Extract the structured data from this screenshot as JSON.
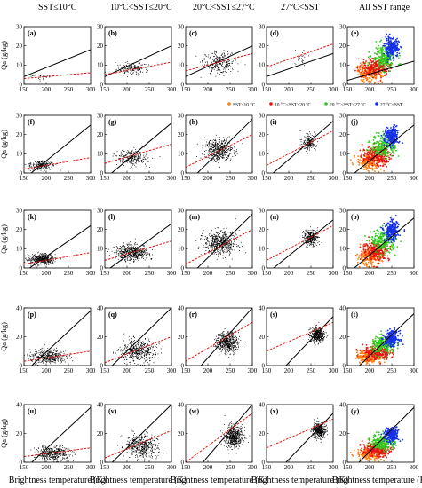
{
  "figure": {
    "column_titles": [
      "SST≤10°C",
      "10°C<SST≤20°C",
      "20°C<SST≤27°C",
      "27°C<SST",
      "All SST range"
    ],
    "row_ylabel": "Qa (g/kg)",
    "xlabel": "Brightness temperature (K)"
  },
  "legend": {
    "entries": [
      {
        "label": "SST≤10 °C",
        "color": "#ff7f0e"
      },
      {
        "label": "10 °C<SST≤20 °C",
        "color": "#e8140f"
      },
      {
        "label": "20 °C<SST≤27 °C",
        "color": "#2ecc1b"
      },
      {
        "label": "27 °C<SST",
        "color": "#1530e8"
      }
    ]
  },
  "colors": {
    "points": "#000000",
    "fit_line": "#e8140f",
    "one_to_one_line": "#000000"
  },
  "chart_data": {
    "type": "scatter",
    "panel_labels": [
      "(a)",
      "(b)",
      "(c)",
      "(d)",
      "(e)",
      "(f)",
      "(g)",
      "(h)",
      "(i)",
      "(j)",
      "(k)",
      "(l)",
      "(m)",
      "(n)",
      "(o)",
      "(p)",
      "(q)",
      "(r)",
      "(s)",
      "(t)",
      "(u)",
      "(v)",
      "(w)",
      "(x)",
      "(y)"
    ],
    "x_ticks": [
      150,
      200,
      250,
      300
    ],
    "xlim": [
      150,
      300
    ],
    "row_y": [
      {
        "ylim": [
          0,
          30
        ],
        "yticks": [
          0,
          10,
          20,
          30
        ]
      },
      {
        "ylim": [
          0,
          30
        ],
        "yticks": [
          0,
          10,
          20,
          30
        ]
      },
      {
        "ylim": [
          0,
          30
        ],
        "yticks": [
          0,
          10,
          20,
          30
        ]
      },
      {
        "ylim": [
          0,
          40
        ],
        "yticks": [
          0,
          20,
          40
        ]
      },
      {
        "ylim": [
          0,
          40
        ],
        "yticks": [
          0,
          20,
          40
        ]
      }
    ],
    "panels": [
      [
        {
          "cluster": {
            "x": 190,
            "y": 4,
            "sx": 12,
            "sy": 0.7,
            "n": 30
          },
          "black_line": [
            [
              150,
              4
            ],
            [
              300,
              18
            ]
          ],
          "red_line": [
            [
              150,
              3
            ],
            [
              300,
              6
            ]
          ]
        },
        {
          "cluster": {
            "x": 212,
            "y": 8,
            "sx": 18,
            "sy": 1.5,
            "n": 150
          },
          "black_line": [
            [
              150,
              4
            ],
            [
              300,
              20
            ]
          ],
          "red_line": [
            [
              150,
              5
            ],
            [
              300,
              11.5
            ]
          ]
        },
        {
          "cluster": {
            "x": 225,
            "y": 11.5,
            "sx": 18,
            "sy": 3,
            "n": 250
          },
          "black_line": [
            [
              150,
              4
            ],
            [
              300,
              20
            ]
          ],
          "red_line": [
            [
              150,
              7
            ],
            [
              300,
              16
            ]
          ]
        },
        {
          "cluster": {
            "x": 228,
            "y": 14.5,
            "sx": 10,
            "sy": 2.5,
            "n": 25
          },
          "black_line": [
            [
              150,
              4
            ],
            [
              300,
              16
            ]
          ],
          "red_line": [
            [
              150,
              9
            ],
            [
              300,
              21
            ]
          ]
        },
        {
          "all": true,
          "black_line": [
            [
              150,
              2
            ],
            [
              300,
              12
            ]
          ]
        }
      ],
      [
        {
          "cluster": {
            "x": 190,
            "y": 4,
            "sx": 15,
            "sy": 1.2,
            "n": 200
          },
          "black_line": [
            [
              150,
              -3
            ],
            [
              300,
              25
            ]
          ],
          "red_line": [
            [
              150,
              2
            ],
            [
              300,
              8
            ]
          ]
        },
        {
          "cluster": {
            "x": 210,
            "y": 8,
            "sx": 18,
            "sy": 2,
            "n": 250
          },
          "black_line": [
            [
              150,
              -3
            ],
            [
              300,
              26
            ]
          ],
          "red_line": [
            [
              150,
              5
            ],
            [
              300,
              15
            ]
          ]
        },
        {
          "cluster": {
            "x": 225,
            "y": 12,
            "sx": 16,
            "sy": 3,
            "n": 450
          },
          "black_line": [
            [
              150,
              -6
            ],
            [
              300,
              28
            ]
          ],
          "red_line": [
            [
              150,
              3
            ],
            [
              300,
              20
            ]
          ]
        },
        {
          "cluster": {
            "x": 245,
            "y": 16,
            "sx": 8,
            "sy": 2,
            "n": 200
          },
          "black_line": [
            [
              150,
              -3
            ],
            [
              300,
              27
            ]
          ],
          "red_line": [
            [
              150,
              4
            ],
            [
              300,
              22
            ]
          ]
        },
        {
          "all": true,
          "black_line": [
            [
              150,
              -3
            ],
            [
              300,
              25
            ]
          ]
        }
      ],
      [
        {
          "cluster": {
            "x": 190,
            "y": 4.5,
            "sx": 15,
            "sy": 1.3,
            "n": 400
          },
          "black_line": [
            [
              150,
              -2
            ],
            [
              300,
              22
            ]
          ],
          "red_line": [
            [
              150,
              2
            ],
            [
              300,
              8
            ]
          ]
        },
        {
          "cluster": {
            "x": 212,
            "y": 8,
            "sx": 18,
            "sy": 2,
            "n": 450
          },
          "black_line": [
            [
              150,
              -2
            ],
            [
              300,
              23
            ]
          ],
          "red_line": [
            [
              150,
              4
            ],
            [
              300,
              14
            ]
          ]
        },
        {
          "cluster": {
            "x": 228,
            "y": 13,
            "sx": 18,
            "sy": 3,
            "n": 550
          },
          "black_line": [
            [
              150,
              -6
            ],
            [
              300,
              28
            ]
          ],
          "red_line": [
            [
              150,
              2
            ],
            [
              300,
              20
            ]
          ]
        },
        {
          "cluster": {
            "x": 250,
            "y": 16,
            "sx": 8,
            "sy": 2,
            "n": 300
          },
          "black_line": [
            [
              150,
              -3
            ],
            [
              300,
              25
            ]
          ],
          "red_line": [
            [
              150,
              4
            ],
            [
              300,
              22
            ]
          ]
        },
        {
          "all": true,
          "black_line": [
            [
              150,
              -3
            ],
            [
              300,
              26
            ]
          ]
        }
      ],
      [
        {
          "cluster": {
            "x": 205,
            "y": 6,
            "sx": 20,
            "sy": 2.5,
            "n": 400
          },
          "black_line": [
            [
              150,
              -5
            ],
            [
              300,
              38
            ]
          ],
          "red_line": [
            [
              150,
              3
            ],
            [
              300,
              10
            ]
          ]
        },
        {
          "cluster": {
            "x": 225,
            "y": 10,
            "sx": 20,
            "sy": 4,
            "n": 450
          },
          "black_line": [
            [
              150,
              -5
            ],
            [
              300,
              40
            ]
          ],
          "red_line": [
            [
              150,
              2
            ],
            [
              300,
              20
            ]
          ]
        },
        {
          "cluster": {
            "x": 245,
            "y": 16,
            "sx": 12,
            "sy": 3.5,
            "n": 500
          },
          "black_line": [
            [
              150,
              -12
            ],
            [
              300,
              40
            ]
          ],
          "red_line": [
            [
              150,
              3
            ],
            [
              300,
              30
            ]
          ]
        },
        {
          "cluster": {
            "x": 265,
            "y": 21,
            "sx": 8,
            "sy": 2.5,
            "n": 400
          },
          "black_line": [
            [
              150,
              -14
            ],
            [
              300,
              34
            ]
          ],
          "red_line": [
            [
              150,
              10
            ],
            [
              300,
              30
            ]
          ]
        },
        {
          "all": true,
          "black_line": [
            [
              150,
              -8
            ],
            [
              300,
              36
            ]
          ]
        }
      ],
      [
        {
          "cluster": {
            "x": 215,
            "y": 6,
            "sx": 20,
            "sy": 2.5,
            "n": 400
          },
          "black_line": [
            [
              150,
              -5
            ],
            [
              300,
              38
            ]
          ],
          "red_line": [
            [
              150,
              4
            ],
            [
              300,
              10
            ]
          ]
        },
        {
          "cluster": {
            "x": 232,
            "y": 11,
            "sx": 18,
            "sy": 4,
            "n": 450
          },
          "black_line": [
            [
              150,
              -5
            ],
            [
              300,
              40
            ]
          ],
          "red_line": [
            [
              150,
              3
            ],
            [
              300,
              22
            ]
          ]
        },
        {
          "cluster": {
            "x": 258,
            "y": 18,
            "sx": 10,
            "sy": 4,
            "n": 500
          },
          "black_line": [
            [
              150,
              -14
            ],
            [
              300,
              40
            ]
          ],
          "red_line": [
            [
              150,
              0
            ],
            [
              300,
              34
            ]
          ]
        },
        {
          "cluster": {
            "x": 268,
            "y": 22,
            "sx": 7,
            "sy": 2.5,
            "n": 400
          },
          "black_line": [
            [
              150,
              -14
            ],
            [
              300,
              34
            ]
          ],
          "red_line": [
            [
              150,
              10
            ],
            [
              300,
              30
            ]
          ]
        },
        {
          "all": true,
          "black_line": [
            [
              150,
              -8
            ],
            [
              300,
              38
            ]
          ]
        }
      ]
    ],
    "all_panel_groups": [
      {
        "name": "SST≤10 °C",
        "color": "#ff7f0e",
        "x": 200,
        "y": 6,
        "sx": 14,
        "sy": 2.2
      },
      {
        "name": "10 °C<SST≤20 °C",
        "color": "#e8140f",
        "x": 215,
        "y": 9,
        "sx": 15,
        "sy": 2.5
      },
      {
        "name": "20 °C<SST≤27 °C",
        "color": "#2ecc1b",
        "x": 232,
        "y": 14,
        "sx": 14,
        "sy": 3
      },
      {
        "name": "27 °C<SST",
        "color": "#1530e8",
        "x": 250,
        "y": 19,
        "sx": 8,
        "sy": 2.5
      }
    ]
  }
}
